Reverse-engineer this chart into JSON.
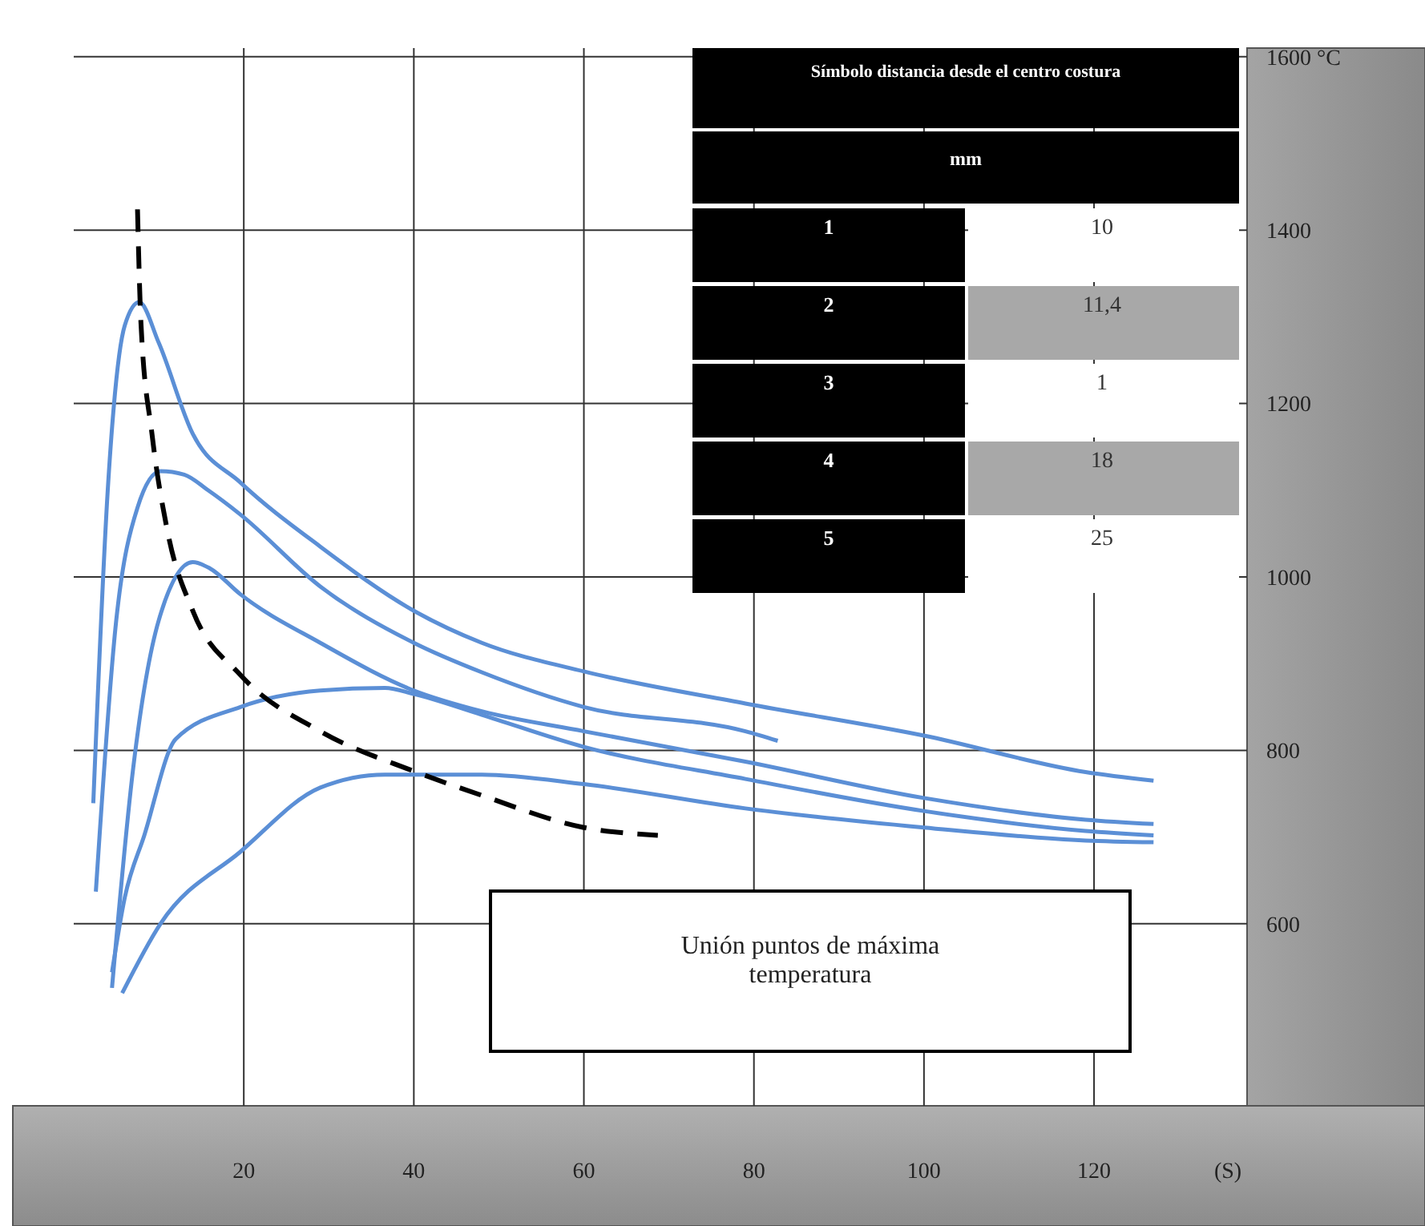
{
  "chart_data": {
    "type": "line",
    "xlim": [
      0,
      138
    ],
    "ylim": [
      390,
      1610
    ],
    "xticks": [
      20,
      40,
      60,
      80,
      100,
      120
    ],
    "yticks": [
      600,
      800,
      1000,
      1200,
      1400,
      {
        "value": 1600,
        "label": "1600 °C"
      }
    ],
    "xlabel": "(S)",
    "grid": true,
    "marker": "none",
    "line_style": "solid",
    "series": [
      {
        "color": "#5b8fd6",
        "x": [
          2.3,
          4,
          6,
          7.7,
          10,
          14,
          19.6,
          29,
          40,
          48,
          60,
          79,
          100,
          119,
          127
        ],
        "values": [
          739,
          1100,
          1290,
          1317,
          1270,
          1165,
          1109,
          1035,
          961,
          924,
          891,
          854,
          817,
          775,
          765
        ]
      },
      {
        "color": "#5b8fd6",
        "x": [
          2.6,
          5,
          7.5,
          10.2,
          13,
          15.8,
          19.6,
          29,
          40,
          48,
          60,
          79,
          82.8
        ],
        "values": [
          637,
          950,
          1080,
          1122,
          1118,
          1100,
          1072,
          989,
          924,
          890,
          850,
          822,
          811
        ]
      },
      {
        "color": "#5b8fd6",
        "x": [
          4.5,
          7,
          10,
          14,
          16,
          19.6,
          29,
          40,
          48,
          60,
          79,
          100,
          119,
          127
        ],
        "values": [
          526,
          780,
          950,
          1017,
          1010,
          980,
          924,
          869,
          845,
          822,
          787,
          745,
          720,
          715
        ]
      },
      {
        "color": "#5b8fd6",
        "x": [
          4.5,
          6,
          8.3,
          12,
          19.6,
          29,
          36.6,
          40,
          48,
          60,
          79,
          100,
          119,
          127
        ],
        "values": [
          544,
          630,
          702,
          813,
          850,
          869,
          872,
          865,
          841,
          804,
          767,
          730,
          707,
          702
        ]
      },
      {
        "color": "#5b8fd6",
        "x": [
          5.7,
          10.2,
          19.6,
          29,
          36.6,
          48,
          60,
          79,
          100,
          119,
          127
        ],
        "values": [
          520,
          600,
          683,
          757,
          772,
          772,
          761,
          733,
          711,
          696,
          694
        ]
      },
      {
        "color": "#000000",
        "line_style": "dashed",
        "x": [
          7.5,
          7.9,
          9.2,
          11,
          14,
          19.6,
          29,
          40,
          48,
          60,
          68.7
        ],
        "values": [
          1424,
          1294,
          1165,
          1054,
          961,
          887,
          822,
          776,
          748,
          711,
          702
        ]
      }
    ],
    "annotations": [
      "Símbolo distancia desde el centro costura",
      "mm",
      "1",
      "10",
      "2",
      "11,4",
      "3",
      "1",
      "4",
      "18",
      "5",
      "25",
      "Unión puntos de máxima temperatura"
    ]
  }
}
